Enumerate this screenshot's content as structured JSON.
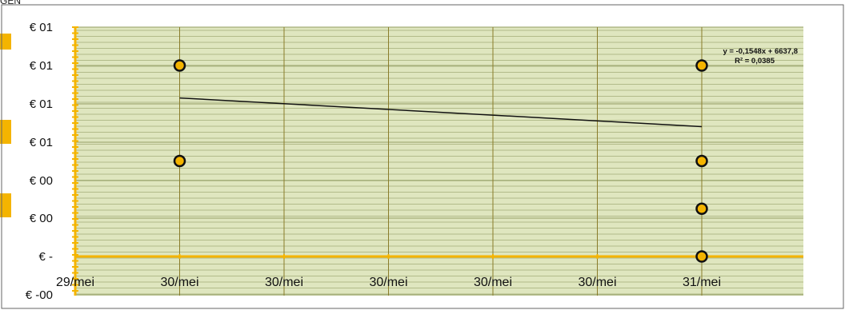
{
  "header_fragment": "GEN",
  "colors": {
    "plot_bg": "#dfe6bf",
    "minor_grid": "#a3ad78",
    "major_vgrid": "#8a7c2a",
    "zero_line": "#f4b400",
    "axis": "#f4b400",
    "marker_fill": "#f4b400",
    "marker_stroke": "#111111",
    "trendline": "#111111"
  },
  "chart_data": {
    "type": "scatter",
    "title": "",
    "xlabel": "",
    "ylabel": "",
    "x_tick_labels": [
      "29/mei",
      "30/mei",
      "30/mei",
      "30/mei",
      "30/mei",
      "30/mei",
      "31/mei"
    ],
    "y_tick_labels": [
      "€ 01",
      "€ 01",
      "€ 01",
      "€ 01",
      "€ 00",
      "€ 00",
      "€ -",
      "€ -00"
    ],
    "xlim": [
      0,
      6
    ],
    "ylim": [
      -0.2,
      1.2
    ],
    "grid": true,
    "points": [
      {
        "x": 1,
        "y": 1.0
      },
      {
        "x": 1,
        "y": 0.5
      },
      {
        "x": 6,
        "y": 1.0
      },
      {
        "x": 6,
        "y": 0.5
      },
      {
        "x": 6,
        "y": 0.25
      },
      {
        "x": 6,
        "y": 0.0
      }
    ],
    "trendline": {
      "x": [
        1,
        6
      ],
      "y": [
        0.83,
        0.68
      ],
      "equation": "y = -0,1548x + 6637,8",
      "r_squared": "R² = 0,0385"
    }
  }
}
